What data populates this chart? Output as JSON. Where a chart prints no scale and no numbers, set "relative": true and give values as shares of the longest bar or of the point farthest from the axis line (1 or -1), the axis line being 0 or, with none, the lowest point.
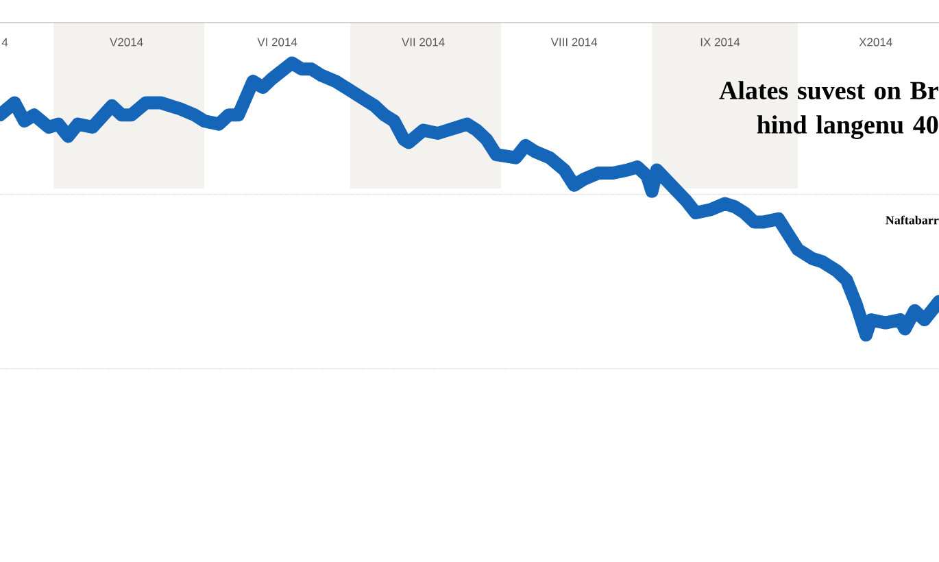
{
  "chart_data": {
    "type": "line",
    "title": "Alates suvest on Br hind langenu 40",
    "subtitle": "Naftabarr",
    "relative": true,
    "xlim": [
      "2014-04-20",
      "2014-10-30"
    ],
    "xticks": [
      {
        "value": "2014-04-21",
        "label": "4"
      },
      {
        "value": "2014-05-16",
        "label": "V2014"
      },
      {
        "value": "2014-06-16",
        "label": "VI 2014"
      },
      {
        "value": "2014-07-16",
        "label": "VII 2014"
      },
      {
        "value": "2014-08-16",
        "label": "VIII 2014"
      },
      {
        "value": "2014-09-15",
        "label": "IX 2014"
      },
      {
        "value": "2014-10-17",
        "label": "X2014"
      }
    ],
    "bands": [
      {
        "axis": "x",
        "from": "2014-05-01",
        "to": "2014-06-01",
        "color": "#f3f2ee"
      },
      {
        "axis": "x",
        "from": "2014-07-01",
        "to": "2014-08-01",
        "color": "#f3f2ee"
      },
      {
        "axis": "x",
        "from": "2014-09-01",
        "to": "2014-10-01",
        "color": "#f3f2ee"
      }
    ],
    "ref_lines": [
      {
        "axis": "y",
        "value": 0.57,
        "color": "#dddddd",
        "line_style": "dotted"
      },
      {
        "axis": "y",
        "value": 0,
        "color": "#dddddd",
        "line_style": "dotted"
      }
    ],
    "series": [
      {
        "color": "#1565b8",
        "x": [
          "2014-04-20",
          "2014-04-23",
          "2014-04-25",
          "2014-04-27",
          "2014-04-30",
          "2014-05-02",
          "2014-05-04",
          "2014-05-06",
          "2014-05-09",
          "2014-05-13",
          "2014-05-15",
          "2014-05-17",
          "2014-05-20",
          "2014-05-23",
          "2014-05-27",
          "2014-05-30",
          "2014-06-01",
          "2014-06-04",
          "2014-06-06",
          "2014-06-08",
          "2014-06-11",
          "2014-06-13",
          "2014-06-15",
          "2014-06-19",
          "2014-06-21",
          "2014-06-23",
          "2014-06-25",
          "2014-06-28",
          "2014-07-01",
          "2014-07-04",
          "2014-07-06",
          "2014-07-08",
          "2014-07-10",
          "2014-07-12",
          "2014-07-13",
          "2014-07-16",
          "2014-07-19",
          "2014-07-21",
          "2014-07-23",
          "2014-07-25",
          "2014-07-27",
          "2014-07-29",
          "2014-07-31",
          "2014-08-04",
          "2014-08-06",
          "2014-08-08",
          "2014-08-11",
          "2014-08-14",
          "2014-08-16",
          "2014-08-18",
          "2014-08-21",
          "2014-08-24",
          "2014-08-27",
          "2014-08-29",
          "2014-08-31",
          "2014-09-01",
          "2014-09-02",
          "2014-09-05",
          "2014-09-08",
          "2014-09-10",
          "2014-09-13",
          "2014-09-16",
          "2014-09-18",
          "2014-09-20",
          "2014-09-22",
          "2014-09-24",
          "2014-09-27",
          "2014-09-29",
          "2014-10-01",
          "2014-10-04",
          "2014-10-06",
          "2014-10-09",
          "2014-10-11",
          "2014-10-13",
          "2014-10-15",
          "2014-10-16",
          "2014-10-19",
          "2014-10-22",
          "2014-10-23",
          "2014-10-25",
          "2014-10-27",
          "2014-10-29",
          "2014-10-30"
        ],
        "values": [
          0.83,
          0.87,
          0.81,
          0.83,
          0.79,
          0.8,
          0.76,
          0.8,
          0.79,
          0.86,
          0.83,
          0.83,
          0.87,
          0.87,
          0.85,
          0.83,
          0.81,
          0.8,
          0.83,
          0.83,
          0.94,
          0.92,
          0.95,
          1,
          0.98,
          0.98,
          0.96,
          0.94,
          0.91,
          0.88,
          0.86,
          0.83,
          0.81,
          0.75,
          0.74,
          0.78,
          0.77,
          0.78,
          0.79,
          0.8,
          0.78,
          0.75,
          0.7,
          0.69,
          0.73,
          0.71,
          0.69,
          0.65,
          0.6,
          0.62,
          0.64,
          0.64,
          0.65,
          0.66,
          0.63,
          0.58,
          0.65,
          0.6,
          0.55,
          0.51,
          0.52,
          0.54,
          0.53,
          0.51,
          0.48,
          0.48,
          0.49,
          0.44,
          0.39,
          0.36,
          0.35,
          0.32,
          0.29,
          0.21,
          0.11,
          0.16,
          0.15,
          0.16,
          0.13,
          0.19,
          0.16,
          0.2,
          0.22
        ]
      }
    ]
  }
}
